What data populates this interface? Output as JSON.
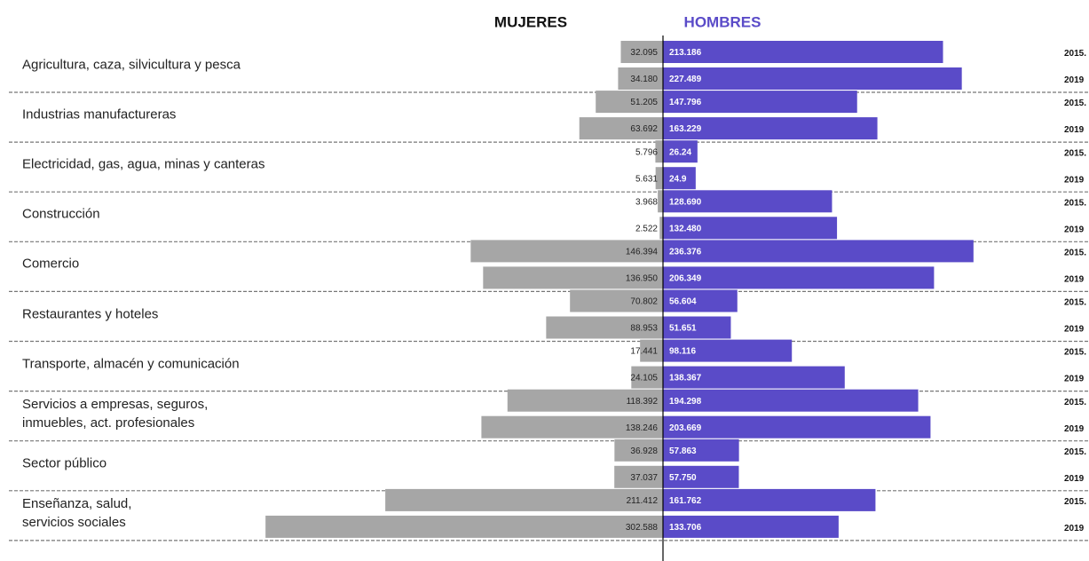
{
  "chart_data": {
    "type": "butterfly",
    "left_title": "MUJERES",
    "right_title": "HOMBRES",
    "years": [
      "2015.",
      "2019"
    ],
    "categories": [
      "Agricultura, caza, silvicultura y pesca",
      "Industrias manufactureras",
      "Electricidad, gas, agua, minas y canteras",
      "Construcción",
      "Comercio",
      "Restaurantes y hoteles",
      "Transporte, almacén y comunicación",
      "Servicios a empresas, seguros,\ninmuebles, act. profesionales",
      "Sector público",
      "Enseñanza, salud,\nservicios sociales"
    ],
    "series": [
      {
        "name": "MUJERES",
        "color": "#a6a6a6",
        "side": "left",
        "values": [
          [
            32.095,
            34.18
          ],
          [
            51.205,
            63.692
          ],
          [
            5.796,
            5.631
          ],
          [
            3.968,
            2.522
          ],
          [
            146.394,
            136.95
          ],
          [
            70.802,
            88.953
          ],
          [
            17.441,
            24.105
          ],
          [
            118.392,
            138.246
          ],
          [
            36.928,
            37.037
          ],
          [
            211.412,
            302.588
          ]
        ],
        "value_labels": [
          [
            "32.095",
            "34.180"
          ],
          [
            "51.205",
            "63.692"
          ],
          [
            "5.796",
            "5.631"
          ],
          [
            "3.968",
            "2.522"
          ],
          [
            "146.394",
            "136.950"
          ],
          [
            "70.802",
            "88.953"
          ],
          [
            "17.441",
            "24.105"
          ],
          [
            "118.392",
            "138.246"
          ],
          [
            "36.928",
            "37.037"
          ],
          [
            "211.412",
            "302.588"
          ]
        ]
      },
      {
        "name": "HOMBRES",
        "color": "#5a4bc8",
        "side": "right",
        "values": [
          [
            213.186,
            227.489
          ],
          [
            147.796,
            163.229
          ],
          [
            26.24,
            24.9
          ],
          [
            128.69,
            132.48
          ],
          [
            236.376,
            206.349
          ],
          [
            56.604,
            51.651
          ],
          [
            98.116,
            138.367
          ],
          [
            194.298,
            203.669
          ],
          [
            57.863,
            57.75
          ],
          [
            161.762,
            133.706
          ]
        ],
        "value_labels": [
          [
            "213.186",
            "227.489"
          ],
          [
            "147.796",
            "163.229"
          ],
          [
            "26.24",
            "24.9"
          ],
          [
            "128.690",
            "132.480"
          ],
          [
            "236.376",
            "206.349"
          ],
          [
            "56.604",
            "51.651"
          ],
          [
            "98.116",
            "138.367"
          ],
          [
            "194.298",
            "203.669"
          ],
          [
            "57.863",
            "57.750"
          ],
          [
            "161.762",
            "133.706"
          ]
        ]
      }
    ]
  }
}
